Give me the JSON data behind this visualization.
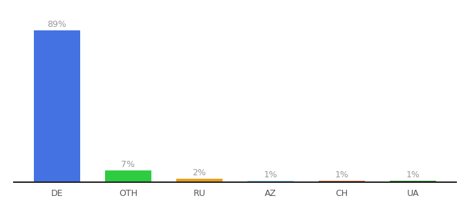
{
  "categories": [
    "DE",
    "OTH",
    "RU",
    "AZ",
    "CH",
    "UA"
  ],
  "values": [
    89,
    7,
    2,
    1,
    1,
    1
  ],
  "labels": [
    "89%",
    "7%",
    "2%",
    "1%",
    "1%",
    "1%"
  ],
  "bar_colors": [
    "#4472e3",
    "#2ecc40",
    "#e8a020",
    "#87ceeb",
    "#c05c2a",
    "#228b22"
  ],
  "background_color": "#ffffff",
  "ylim": [
    0,
    97
  ],
  "label_fontsize": 9,
  "tick_fontsize": 9,
  "label_color": "#999999",
  "bar_width": 0.65
}
